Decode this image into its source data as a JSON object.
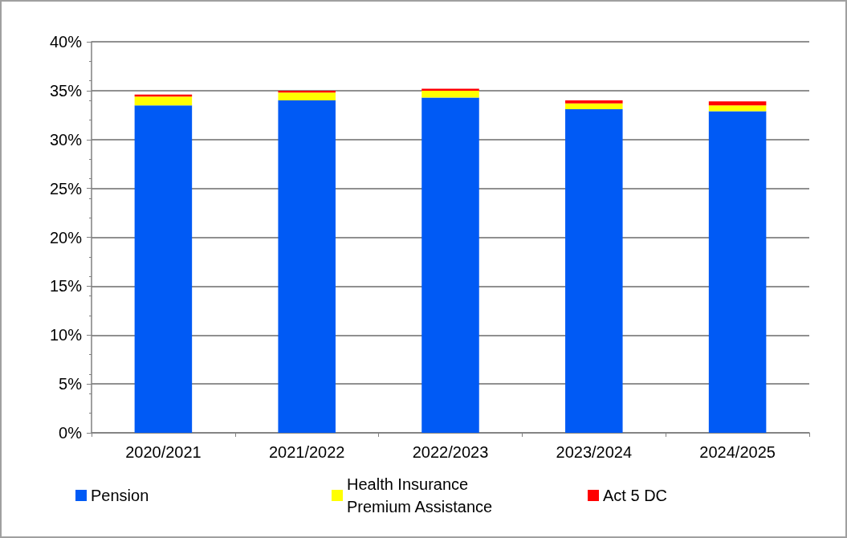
{
  "chart_data": {
    "type": "bar",
    "stacked": true,
    "categories": [
      "2020/2021",
      "2021/2022",
      "2022/2023",
      "2023/2024",
      "2024/2025"
    ],
    "series": [
      {
        "name": "Pension",
        "color": "#005af5",
        "values": [
          33.5,
          34.0,
          34.3,
          33.1,
          32.9
        ]
      },
      {
        "name": "Health Insurance Premium Assistance",
        "color": "#ffff00",
        "values": [
          0.9,
          0.8,
          0.7,
          0.6,
          0.6
        ]
      },
      {
        "name": "Act 5 DC",
        "color": "#ff0000",
        "values": [
          0.2,
          0.2,
          0.2,
          0.3,
          0.4
        ]
      }
    ],
    "ylim": [
      0,
      40
    ],
    "yticks": [
      {
        "value": 0,
        "label": "0%"
      },
      {
        "value": 5,
        "label": "5%"
      },
      {
        "value": 10,
        "label": "10%"
      },
      {
        "value": 15,
        "label": "15%"
      },
      {
        "value": 20,
        "label": "20%"
      },
      {
        "value": 25,
        "label": "25%"
      },
      {
        "value": 30,
        "label": "30%"
      },
      {
        "value": 35,
        "label": "35%"
      },
      {
        "value": 40,
        "label": "40%"
      }
    ],
    "grid": "y",
    "legend": "bottom"
  }
}
